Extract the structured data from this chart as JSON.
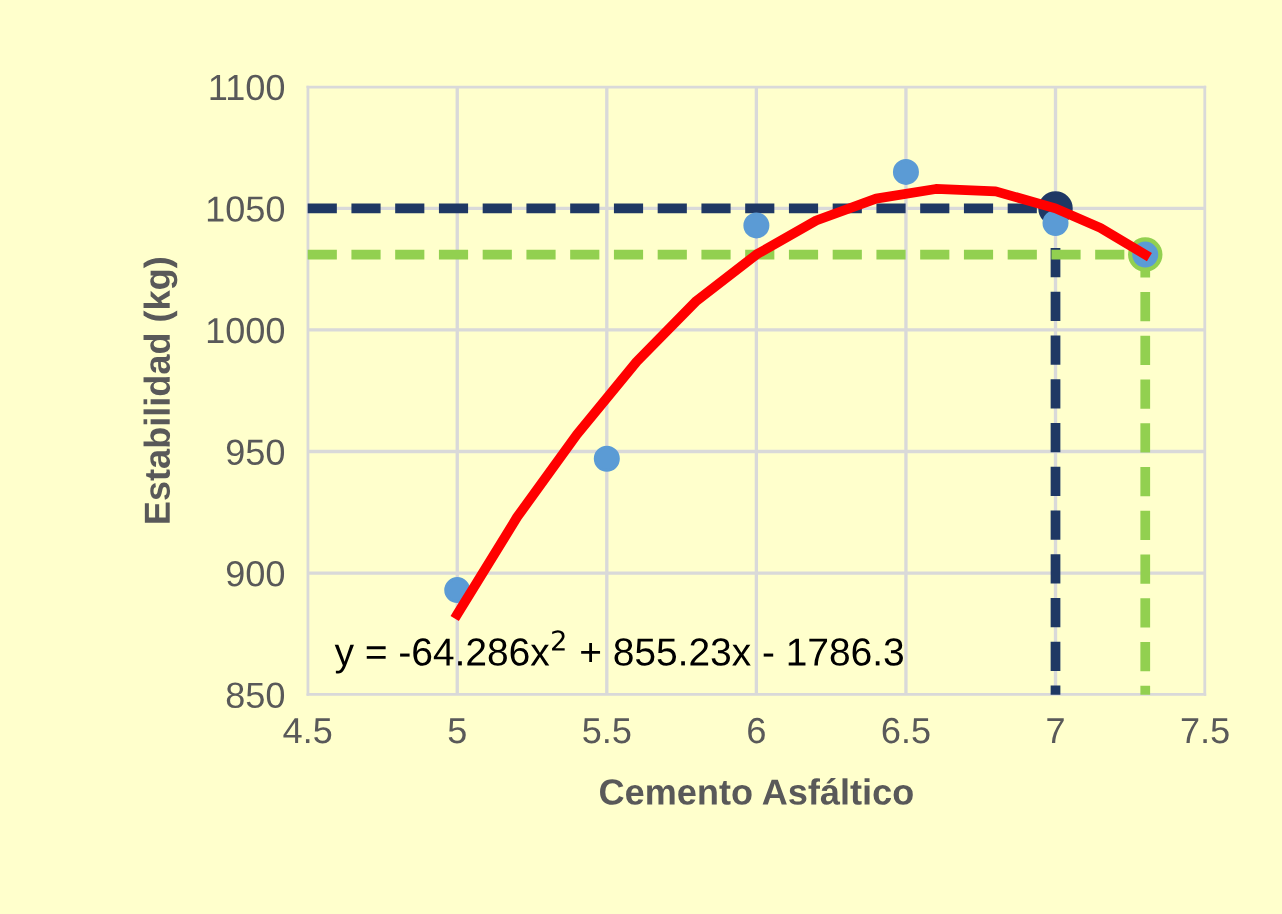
{
  "chart_data": {
    "type": "scatter",
    "xlabel": "Cemento Asfáltico",
    "ylabel": "Estabilidad (kg)",
    "xlim": [
      4.5,
      7.5
    ],
    "xticks": [
      4.5,
      5,
      5.5,
      6,
      6.5,
      7,
      7.5
    ],
    "ylim": [
      850,
      1100
    ],
    "yticks": [
      850,
      900,
      950,
      1000,
      1050,
      1100
    ],
    "grid": true,
    "series": [
      {
        "type": "line",
        "line_style": "dashed",
        "marker": "none",
        "color": "#1f3864",
        "x": [
          4.5,
          7,
          7
        ],
        "values": [
          1050,
          1050,
          850
        ]
      },
      {
        "type": "line",
        "line_style": "dashed",
        "marker": "none",
        "color": "#92d050",
        "x": [
          4.5,
          7.3,
          7.3
        ],
        "values": [
          1031,
          1031,
          850
        ]
      },
      {
        "marker": "circle",
        "color": "#5b9bd5",
        "x": [
          5,
          5.5,
          6,
          6.5,
          7,
          7.3
        ],
        "values": [
          893,
          947,
          1043,
          1065,
          1044,
          1031
        ]
      },
      {
        "marker": "circle",
        "color": "#1f3864",
        "x": [
          7
        ],
        "values": [
          1050
        ]
      },
      {
        "marker": "circle",
        "color": "#92d050",
        "x": [
          7.3
        ],
        "values": [
          1031
        ]
      },
      {
        "type": "line",
        "line_style": "solid",
        "marker": "none",
        "color": "#ff0000",
        "x": [
          5,
          5.2,
          5.4,
          5.6,
          5.8,
          6,
          6.2,
          6.4,
          6.6,
          6.8,
          7,
          7.15,
          7.3
        ],
        "values": [
          883,
          923,
          957,
          987,
          1012,
          1031,
          1045,
          1054,
          1058,
          1057,
          1050,
          1042,
          1031
        ]
      }
    ],
    "annotations": [
      "y = -64.286x$^{2}$ + 855.23x - 1786.3"
    ]
  }
}
